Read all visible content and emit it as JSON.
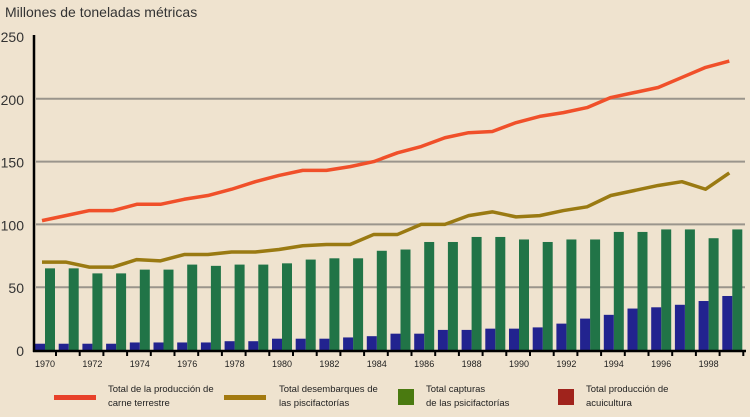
{
  "chart_data": {
    "type": "bar+line",
    "title": "Millones de toneladas métricas",
    "xlabel": "",
    "ylabel": "",
    "ylim": [
      0,
      250
    ],
    "yticks": [
      "0",
      "50",
      "100",
      "150",
      "200",
      "250"
    ],
    "grid": true,
    "x": [
      1970,
      1971,
      1972,
      1973,
      1974,
      1975,
      1976,
      1977,
      1978,
      1979,
      1980,
      1981,
      1982,
      1983,
      1984,
      1985,
      1986,
      1987,
      1988,
      1989,
      1990,
      1991,
      1992,
      1993,
      1994,
      1995,
      1996,
      1997,
      1998,
      1999
    ],
    "xtick_labels": [
      "1970",
      "1972",
      "1974",
      "1976",
      "1978",
      "1980",
      "1982",
      "1984",
      "1986",
      "1988",
      "1990",
      "1992",
      "1994",
      "1996",
      "1998"
    ],
    "legend_position": "bottom",
    "series": [
      {
        "name": "Total de la producción de carne terrestre",
        "kind": "line",
        "color": "#f0502a",
        "values": [
          103,
          107,
          111,
          111,
          116,
          116,
          120,
          123,
          128,
          134,
          139,
          143,
          143,
          146,
          150,
          157,
          162,
          169,
          173,
          174,
          181,
          186,
          189,
          193,
          201,
          205,
          209,
          217,
          225,
          230
        ]
      },
      {
        "name": "Total desembarques de las piscifactorías",
        "kind": "line",
        "color": "#9a7a12",
        "values": [
          70,
          70,
          66,
          66,
          72,
          71,
          76,
          76,
          78,
          78,
          80,
          83,
          84,
          84,
          92,
          92,
          100,
          100,
          107,
          110,
          106,
          107,
          111,
          114,
          123,
          127,
          131,
          134,
          128,
          141
        ]
      },
      {
        "name": "Total capturas de las psicifactorías",
        "kind": "bar",
        "color": "#217447",
        "legend_color": "#4a7a10",
        "values": [
          65,
          65,
          61,
          61,
          64,
          64,
          68,
          67,
          68,
          68,
          69,
          72,
          73,
          73,
          79,
          80,
          86,
          86,
          90,
          90,
          88,
          86,
          88,
          88,
          94,
          94,
          96,
          96,
          89,
          96
        ]
      },
      {
        "name": "Total producción de acuicultura",
        "kind": "bar",
        "color": "#22238f",
        "legend_color": "#a0231c",
        "values": [
          5,
          5,
          5,
          5,
          6,
          6,
          6,
          6,
          7,
          7,
          9,
          9,
          9,
          10,
          11,
          13,
          13,
          16,
          16,
          17,
          17,
          18,
          21,
          25,
          28,
          33,
          34,
          36,
          39,
          43
        ]
      }
    ]
  },
  "legend": [
    {
      "line1": "Total de la producción de",
      "line2": "carne terrestre"
    },
    {
      "line1": "Total desembarques de",
      "line2": "las piscifactorías"
    },
    {
      "line1": "Total capturas",
      "line2": "de las psicifactorías"
    },
    {
      "line1": "Total producción de",
      "line2": "acuicultura"
    }
  ]
}
